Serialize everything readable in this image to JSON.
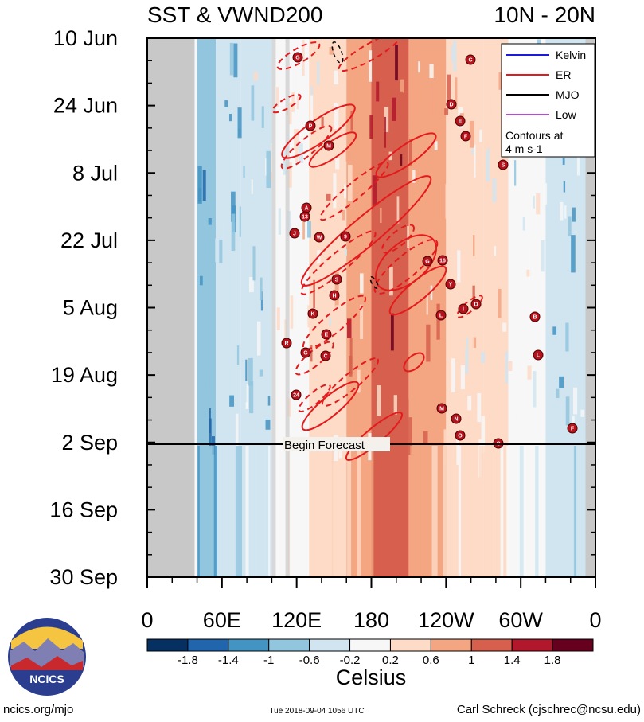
{
  "title_left": "SST & VWND200",
  "title_right": "10N - 20N",
  "chart_data": {
    "type": "heatmap",
    "y_axis": {
      "tick_labels": [
        "10 Jun",
        "24 Jun",
        "8 Jul",
        "22 Jul",
        "5 Aug",
        "19 Aug",
        "2 Sep",
        "16 Sep",
        "30 Sep"
      ],
      "direction": "time increases downward"
    },
    "x_axis": {
      "tick_labels": [
        "0",
        "60E",
        "120E",
        "180",
        "120W",
        "60W",
        "0"
      ],
      "range_deg_east": [
        0,
        360
      ]
    },
    "forecast_start": "2 Sep",
    "forecast_label": "Begin Forecast",
    "legend": {
      "placement": "top-right",
      "entries": [
        {
          "name": "Kelvin",
          "color": "#1a1adc"
        },
        {
          "name": "ER",
          "color": "#e41a1c"
        },
        {
          "name": "MJO",
          "color": "#000000"
        },
        {
          "name": "Low",
          "color": "#b04fc7"
        }
      ],
      "note_lines": [
        "Contours at",
        "4 m s-1"
      ]
    },
    "colorbar": {
      "label": "Celsius",
      "tick_labels": [
        "-1.8",
        "-1.4",
        "-1",
        "-0.6",
        "-0.2",
        "0.2",
        "0.6",
        "1",
        "1.4",
        "1.8"
      ],
      "bins": [
        -2.2,
        -1.8,
        -1.4,
        -1.0,
        -0.6,
        -0.2,
        0.2,
        0.6,
        1.0,
        1.4,
        1.8,
        2.2
      ],
      "colors": [
        "#053061",
        "#2166ac",
        "#4393c3",
        "#92c5de",
        "#d1e5f0",
        "#f7f7f7",
        "#fddbc7",
        "#f4a582",
        "#d6604d",
        "#b2182b",
        "#67001f"
      ]
    },
    "anomaly_bands": [
      {
        "lon_start": 40,
        "lon_end": 55,
        "value": -1.0
      },
      {
        "lon_start": 55,
        "lon_end": 75,
        "value": -0.6
      },
      {
        "lon_start": 75,
        "lon_end": 100,
        "value": -0.3
      },
      {
        "lon_start": 100,
        "lon_end": 130,
        "value": 0.1
      },
      {
        "lon_start": 130,
        "lon_end": 160,
        "value": 0.4
      },
      {
        "lon_start": 160,
        "lon_end": 180,
        "value": 0.8
      },
      {
        "lon_start": 180,
        "lon_end": 210,
        "value": 1.2
      },
      {
        "lon_start": 210,
        "lon_end": 240,
        "value": 0.7
      },
      {
        "lon_start": 240,
        "lon_end": 270,
        "value": 0.3
      },
      {
        "lon_start": 270,
        "lon_end": 290,
        "value": 0.2
      },
      {
        "lon_start": 290,
        "lon_end": 320,
        "value": -0.2
      },
      {
        "lon_start": 320,
        "lon_end": 345,
        "value": -0.6
      },
      {
        "lon_start": 345,
        "lon_end": 355,
        "value": -0.3
      }
    ],
    "land_mask_lon_ranges": [
      [
        0,
        38
      ],
      [
        352,
        360
      ]
    ],
    "storm_labels": [
      "G",
      "C",
      "D",
      "E",
      "F",
      "P",
      "M",
      "S",
      "A",
      "13",
      "J",
      "W",
      "9",
      "G",
      "16",
      "S",
      "H",
      "Y",
      "K",
      "L",
      "I",
      "D",
      "B",
      "R",
      "G",
      "E",
      "C",
      "L",
      "24",
      "M",
      "N",
      "O",
      "C",
      "F"
    ]
  },
  "footer": {
    "logo_text": "NCICS",
    "url": "ncics.org/mjo",
    "timestamp": "Tue 2018-09-04 1056 UTC",
    "author": "Carl Schreck (cjschrec@ncsu.edu)"
  }
}
